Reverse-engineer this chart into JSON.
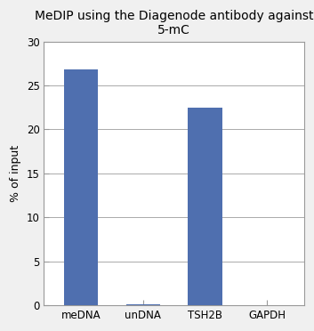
{
  "title": "MeDIP using the Diagenode antibody against\n5-mC",
  "categories": [
    "meDNA",
    "unDNA",
    "TSH2B",
    "GAPDH"
  ],
  "values": [
    26.8,
    0.15,
    22.5,
    0.0
  ],
  "bar_color": "#4F6FAF",
  "ylabel": "% of input",
  "ylim": [
    0,
    30
  ],
  "yticks": [
    0,
    5,
    10,
    15,
    20,
    25,
    30
  ],
  "bar_width": 0.55,
  "background_color": "#f0f0f0",
  "plot_bg_color": "#ffffff",
  "title_fontsize": 10,
  "axis_fontsize": 9,
  "tick_fontsize": 8.5,
  "grid_color": "#aaaaaa",
  "spine_color": "#999999"
}
